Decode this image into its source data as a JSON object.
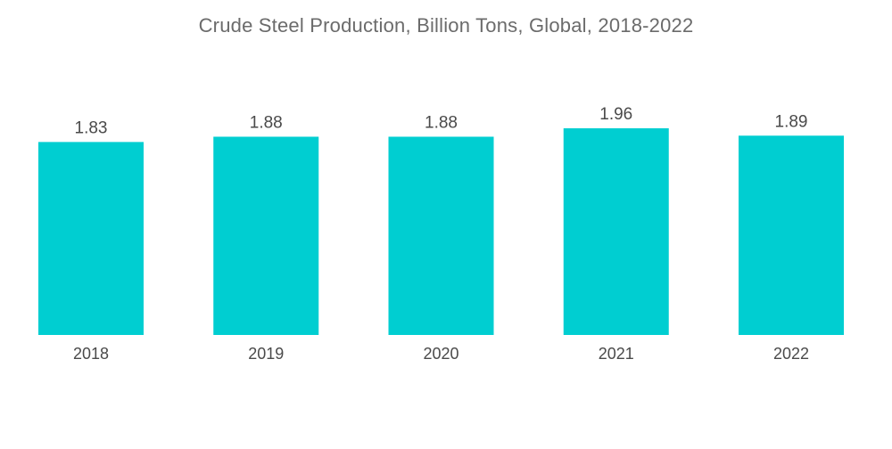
{
  "chart_data": {
    "type": "bar",
    "title": "Crude Steel Production, Billion Tons, Global, 2018-2022",
    "categories": [
      "2018",
      "2019",
      "2020",
      "2021",
      "2022"
    ],
    "values": [
      1.83,
      1.88,
      1.88,
      1.96,
      1.89
    ],
    "value_labels": [
      "1.83",
      "1.88",
      "1.88",
      "1.96",
      "1.89"
    ],
    "xlabel": "",
    "ylabel": "",
    "ylim": [
      0,
      1.96
    ],
    "grid": false,
    "bar_color": "#00CED1"
  }
}
